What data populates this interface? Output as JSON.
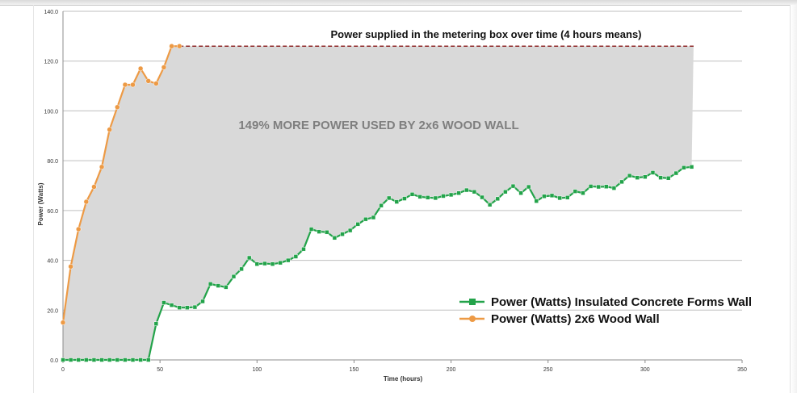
{
  "chart_data": {
    "type": "line",
    "title": "Power supplied in the metering box over time (4 hours means)",
    "annotation": "149% MORE POWER USED BY 2x6 WOOD WALL",
    "xlabel": "Time (hours)",
    "ylabel": "Power (Watts)",
    "xlim": [
      0,
      350
    ],
    "ylim": [
      0,
      140
    ],
    "x_ticks": [
      "0",
      "50",
      "100",
      "150",
      "200",
      "250",
      "300",
      "350"
    ],
    "y_ticks": [
      "0.0",
      "20.0",
      "40.0",
      "60.0",
      "80.0",
      "100.0",
      "120.0",
      "140.0"
    ],
    "grid": "horizontal",
    "legend_position": "bottom-right",
    "shaded_region": "between series, gray",
    "wood_plateau_dashed_to_x": 325,
    "colors": {
      "ICF": "#23a34a",
      "Wood": "#ed9a45",
      "dash": "#8f2a2a",
      "fill": "#d9d9d9",
      "grid": "#bfbfbf"
    },
    "series": [
      {
        "name": "Power (Watts) Insulated Concrete Forms Wall",
        "marker": "square",
        "x": [
          0,
          4,
          8,
          12,
          16,
          20,
          24,
          28,
          32,
          36,
          40,
          44,
          48,
          52,
          56,
          60,
          64,
          68,
          72,
          76,
          80,
          84,
          88,
          92,
          96,
          100,
          104,
          108,
          112,
          116,
          120,
          124,
          128,
          132,
          136,
          140,
          144,
          148,
          152,
          156,
          160,
          164,
          168,
          172,
          176,
          180,
          184,
          188,
          192,
          196,
          200,
          204,
          208,
          212,
          216,
          220,
          224,
          228,
          232,
          236,
          240,
          244,
          248,
          252,
          256,
          260,
          264,
          268,
          272,
          276,
          280,
          284,
          288,
          292,
          296,
          300,
          304,
          308,
          312,
          316,
          320,
          324
        ],
        "y": [
          0.0,
          0.0,
          0.0,
          0.0,
          0.0,
          0.0,
          0.0,
          0.0,
          0.0,
          0.0,
          0.0,
          0.0,
          14.5,
          23.0,
          22.0,
          21.0,
          21.0,
          21.2,
          23.5,
          30.5,
          29.8,
          29.2,
          33.5,
          36.5,
          41.0,
          38.5,
          38.7,
          38.5,
          39.0,
          40.0,
          41.5,
          44.5,
          52.5,
          51.5,
          51.3,
          49.0,
          50.5,
          52.0,
          54.5,
          56.5,
          57.2,
          62.0,
          65.0,
          63.5,
          64.8,
          66.5,
          65.5,
          65.2,
          65.0,
          65.8,
          66.3,
          67.0,
          68.2,
          67.5,
          65.3,
          62.3,
          64.7,
          67.5,
          69.8,
          67.0,
          69.5,
          63.8,
          65.7,
          66.0,
          65.0,
          65.2,
          67.7,
          67.0,
          69.7,
          69.5,
          69.6,
          69.0,
          71.5,
          74.0,
          73.2,
          73.5,
          75.2,
          73.2,
          73.0,
          75.0,
          77.2,
          77.5
        ]
      },
      {
        "name": "Power (Watts) 2x6 Wood Wall",
        "marker": "circle",
        "x": [
          0,
          4,
          8,
          12,
          16,
          20,
          24,
          28,
          32,
          36,
          40,
          44,
          48,
          52,
          56,
          60
        ],
        "y": [
          15.0,
          37.5,
          52.5,
          63.5,
          69.5,
          77.5,
          92.5,
          101.5,
          110.5,
          110.5,
          117.0,
          112.0,
          111.0,
          117.5,
          126.0,
          126.0
        ]
      }
    ]
  }
}
